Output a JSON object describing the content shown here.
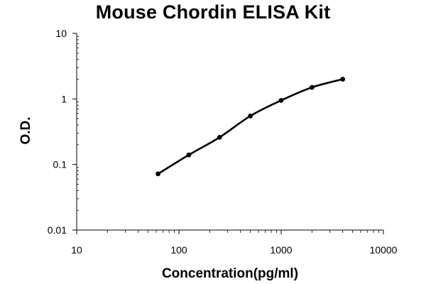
{
  "chart_data": {
    "type": "line",
    "title": "Mouse Chordin ELISA Kit",
    "xlabel": "Concentration(pg/ml)",
    "ylabel": "O.D.",
    "x_scale": "log",
    "y_scale": "log",
    "xlim": [
      10,
      10000
    ],
    "ylim": [
      0.01,
      10
    ],
    "x_tick_labels": [
      "10",
      "100",
      "1000",
      "10000"
    ],
    "y_tick_labels": [
      "10",
      "1",
      "0.1",
      "0.01"
    ],
    "grid": false,
    "series": [
      {
        "x": [
          62.5,
          125,
          250,
          500,
          1000,
          2000,
          4000
        ],
        "y": [
          0.072,
          0.14,
          0.26,
          0.55,
          0.95,
          1.5,
          2.0
        ],
        "marker": "circle",
        "color": "#000000"
      }
    ]
  }
}
